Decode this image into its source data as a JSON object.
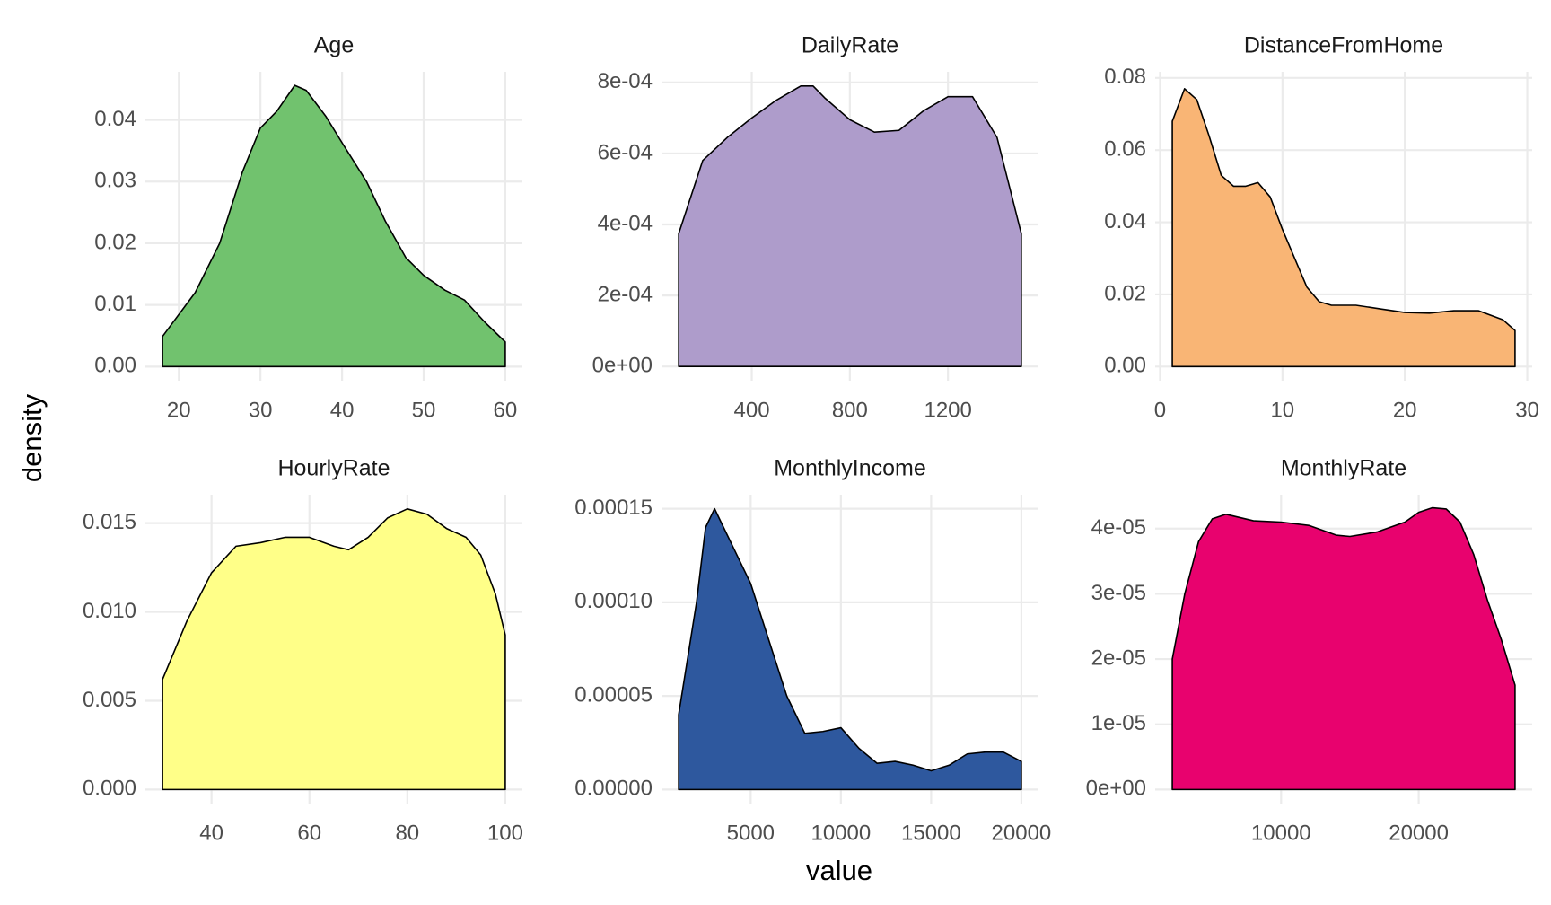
{
  "x_label": "value",
  "y_label": "density",
  "chart_data": [
    {
      "type": "area",
      "title": "Age",
      "color": "#71c26e",
      "grid": true,
      "x": [
        18,
        22,
        25,
        27.8,
        30,
        32,
        34.2,
        35.6,
        38,
        40,
        43,
        45.3,
        47.8,
        50,
        52.6,
        55,
        57.5,
        60
      ],
      "values": [
        0.0049,
        0.012,
        0.02,
        0.0316,
        0.0387,
        0.0414,
        0.0456,
        0.0448,
        0.0406,
        0.0363,
        0.03,
        0.0236,
        0.0177,
        0.0148,
        0.0124,
        0.0108,
        0.0072,
        0.004
      ],
      "xlim": [
        15.9,
        62.1
      ],
      "ylim": [
        -0.00228,
        0.0478
      ],
      "xticks": [
        20,
        30,
        40,
        50,
        60
      ],
      "yticks": [
        {
          "value": 0,
          "label": "0.00"
        },
        0.01,
        0.02,
        0.03,
        0.04
      ]
    },
    {
      "type": "area",
      "title": "DailyRate",
      "color": "#ae9ccb",
      "grid": true,
      "x": [
        102,
        200,
        300,
        400,
        500,
        600,
        650,
        700,
        800,
        900,
        1000,
        1100,
        1200,
        1300,
        1400,
        1499
      ],
      "values": [
        0.000374,
        0.00058,
        0.000645,
        0.0007,
        0.00075,
        0.00079,
        0.00079,
        0.000755,
        0.000695,
        0.00066,
        0.000665,
        0.00072,
        0.00076,
        0.00076,
        0.000645,
        0.000374
      ],
      "xlim": [
        32,
        1569
      ],
      "ylim": [
        -4e-05,
        0.00083
      ],
      "xticks": [
        400,
        800,
        1200
      ],
      "yticks": [
        {
          "value": 0,
          "label": "0e+00"
        },
        {
          "value": 0.0002,
          "label": "2e-04"
        },
        {
          "value": 0.0004,
          "label": "4e-04"
        },
        {
          "value": 0.0006,
          "label": "6e-04"
        },
        {
          "value": 0.0008,
          "label": "8e-04"
        }
      ]
    },
    {
      "type": "area",
      "title": "DistanceFromHome",
      "color": "#f9b575",
      "grid": true,
      "x": [
        1,
        2,
        3,
        4,
        5,
        6,
        7,
        8,
        9,
        10,
        11,
        12,
        13,
        14,
        16,
        18,
        20,
        22,
        24,
        26,
        28,
        29
      ],
      "values": [
        0.068,
        0.077,
        0.074,
        0.064,
        0.053,
        0.05,
        0.05,
        0.051,
        0.047,
        0.038,
        0.03,
        0.022,
        0.018,
        0.017,
        0.017,
        0.016,
        0.015,
        0.0148,
        0.0155,
        0.0155,
        0.013,
        0.01
      ],
      "xlim": [
        -0.4,
        30.4
      ],
      "ylim": [
        -0.0039,
        0.0817
      ],
      "xticks": [
        0,
        10,
        20,
        30
      ],
      "yticks": [
        {
          "value": 0,
          "label": "0.00"
        },
        0.02,
        0.04,
        0.06,
        0.08
      ]
    },
    {
      "type": "area",
      "title": "HourlyRate",
      "color": "#ffff88",
      "grid": true,
      "x": [
        30,
        35,
        40,
        45,
        50,
        55,
        60,
        65,
        68,
        72,
        76,
        80,
        84,
        88,
        92,
        95,
        98,
        100
      ],
      "values": [
        0.0062,
        0.0095,
        0.0122,
        0.0137,
        0.0139,
        0.0142,
        0.0142,
        0.0137,
        0.0135,
        0.0142,
        0.0153,
        0.0158,
        0.0155,
        0.0147,
        0.0142,
        0.0132,
        0.011,
        0.0087
      ],
      "xlim": [
        26.5,
        103.5
      ],
      "ylim": [
        -0.00079,
        0.0166
      ],
      "xticks": [
        40,
        60,
        80,
        100
      ],
      "yticks": [
        {
          "value": 0,
          "label": "0.000"
        },
        0.005,
        {
          "value": 0.01,
          "label": "0.010"
        },
        0.015
      ]
    },
    {
      "type": "area",
      "title": "MonthlyIncome",
      "color": "#2e589e",
      "grid": true,
      "x": [
        1009,
        2000,
        2500,
        3000,
        3500,
        4000,
        5000,
        6000,
        7000,
        8000,
        9000,
        10000,
        11000,
        12000,
        13000,
        14000,
        15000,
        16000,
        17000,
        18000,
        19000,
        19999
      ],
      "values": [
        4e-05,
        0.0001,
        0.00014,
        0.00015,
        0.00014,
        0.00013,
        0.00011,
        8e-05,
        5e-05,
        3e-05,
        3.1e-05,
        3.3e-05,
        2.2e-05,
        1.4e-05,
        1.5e-05,
        1.3e-05,
        1e-05,
        1.3e-05,
        1.9e-05,
        2e-05,
        2e-05,
        1.5e-05
      ],
      "xlim": [
        59,
        20949
      ],
      "ylim": [
        -7.5e-06,
        0.0001575
      ],
      "xticks": [
        5000,
        10000,
        15000,
        20000
      ],
      "yticks": [
        {
          "value": 0,
          "label": "0.00000"
        },
        5e-05,
        {
          "value": 0.0001,
          "label": "0.00010"
        },
        0.00015
      ]
    },
    {
      "type": "area",
      "title": "MonthlyRate",
      "color": "#e8026e",
      "grid": true,
      "x": [
        2094,
        3000,
        4000,
        5000,
        6000,
        8000,
        10000,
        12000,
        14000,
        15000,
        17000,
        19000,
        20000,
        21000,
        22000,
        23000,
        24000,
        25000,
        26000,
        26999
      ],
      "values": [
        2e-05,
        3e-05,
        3.8e-05,
        4.15e-05,
        4.22e-05,
        4.12e-05,
        4.1e-05,
        4.05e-05,
        3.9e-05,
        3.88e-05,
        3.95e-05,
        4.1e-05,
        4.25e-05,
        4.32e-05,
        4.3e-05,
        4.1e-05,
        3.6e-05,
        2.9e-05,
        2.3e-05,
        1.6e-05
      ],
      "xlim": [
        849,
        28244
      ],
      "ylim": [
        -2.15e-06,
        4.52e-05
      ],
      "xticks": [
        10000,
        20000
      ],
      "yticks": [
        {
          "value": 0,
          "label": "0e+00"
        },
        {
          "value": 1e-05,
          "label": "1e-05"
        },
        {
          "value": 2e-05,
          "label": "2e-05"
        },
        {
          "value": 3e-05,
          "label": "3e-05"
        },
        {
          "value": 4e-05,
          "label": "4e-05"
        }
      ]
    }
  ]
}
